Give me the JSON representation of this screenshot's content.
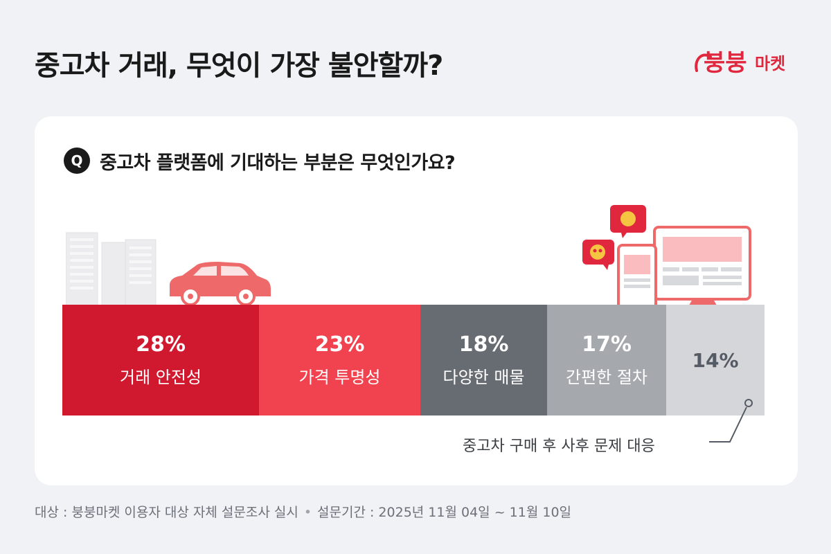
{
  "header": {
    "title": "중고차 거래, 무엇이 가장 불안할까?"
  },
  "logo": {
    "text": "붕붕마켓",
    "color": "#e0273d"
  },
  "question": {
    "badge": "Q",
    "text": "중고차 플랫폼에 기대하는 부분은 무엇인가요?"
  },
  "callout": {
    "text": "중고차 구매 후 사후 문제 대응"
  },
  "footnote": {
    "subject": "대상 : 붕붕마켓 이용자 대상 자체 설문조사 실시",
    "period": "설문기간 : 2025년 11월 04일 ~ 11월 10일"
  },
  "chart_data": {
    "type": "bar",
    "orientation": "stacked-horizontal",
    "unit": "%",
    "categories": [
      "거래 안전성",
      "가격 투명성",
      "다양한 매물",
      "간편한 절차",
      "중고차 구매 후 사후 문제 대응"
    ],
    "values": [
      28,
      23,
      18,
      17,
      14
    ],
    "value_labels": [
      "28%",
      "23%",
      "18%",
      "17%",
      "14%"
    ],
    "colors": [
      "#d0192f",
      "#f0434f",
      "#676b72",
      "#a5a8ad",
      "#d4d6da"
    ]
  }
}
